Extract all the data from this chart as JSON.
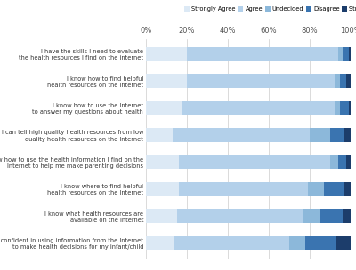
{
  "categories": [
    "I have the skills I need to evaluate\nthe health resources I find on the internet",
    "I know how to find helpful\nhealth resources on the Internet",
    "I know how to use the Internet\nto answer my questions about health",
    "I can tell high quality health resources from low\nquality health resources on the Internet",
    "I know how to use the health information I find on the\nInternet to help me make parenting decisions",
    "I know where to find helpful\nhealth resources on the Internet",
    "I know what health resources are\navailable on the Internet",
    "I feel confident in using information from the Internet\nto make health decisions for my infant/child"
  ],
  "strongly_agree": [
    20,
    20,
    18,
    13,
    16,
    16,
    15,
    14
  ],
  "agree": [
    74,
    72,
    74,
    67,
    74,
    63,
    62,
    56
  ],
  "undecided": [
    2,
    3,
    3,
    10,
    4,
    8,
    8,
    8
  ],
  "disagree": [
    3,
    3,
    4,
    7,
    4,
    10,
    11,
    15
  ],
  "strongly_disagree": [
    1,
    2,
    1,
    3,
    2,
    3,
    4,
    7
  ],
  "colors": {
    "strongly_agree": "#dce9f5",
    "agree": "#b3d0ea",
    "undecided": "#8cb8da",
    "disagree": "#3a74b0",
    "strongly_disagree": "#1c3d6b"
  },
  "legend_labels": [
    "Strongly Agree",
    "Agree",
    "Undecided",
    "Disagree",
    "Strongly Disagree"
  ],
  "xtick_labels": [
    "0%",
    "20%",
    "40%",
    "60%",
    "80%",
    "100%"
  ],
  "xtick_vals": [
    0,
    20,
    40,
    60,
    80,
    100
  ],
  "figsize": [
    4.0,
    3.04
  ],
  "dpi": 100
}
